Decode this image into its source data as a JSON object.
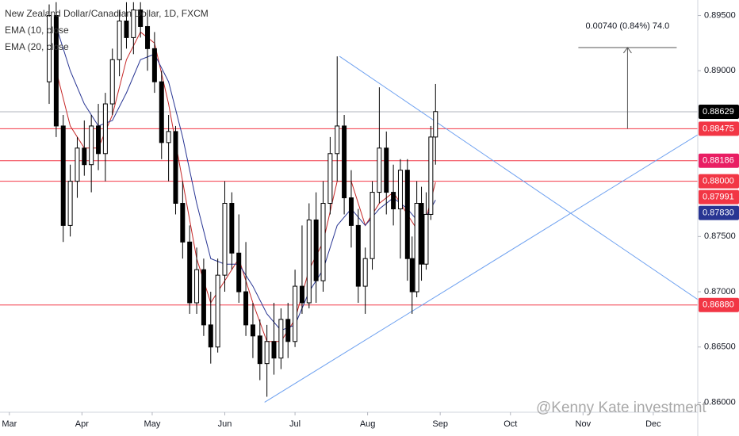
{
  "chart_data": {
    "type": "candlestick",
    "title": "New Zealand Dollar/Canadian Dollar, 1D, FXCM",
    "watermark": "@Kenny Kate investment",
    "xlim": [
      -4,
      294
    ],
    "ylim": [
      0.8591,
      0.8964
    ],
    "xticks": [
      {
        "value": 0,
        "label": "Mar"
      },
      {
        "value": 31,
        "label": "Apr"
      },
      {
        "value": 61,
        "label": "May"
      },
      {
        "value": 92,
        "label": "Jun"
      },
      {
        "value": 122,
        "label": "Jul"
      },
      {
        "value": 153,
        "label": "Aug"
      },
      {
        "value": 184,
        "label": "Sep"
      },
      {
        "value": 214,
        "label": "Oct"
      },
      {
        "value": 245,
        "label": "Nov"
      },
      {
        "value": 275,
        "label": "Dec"
      }
    ],
    "yticks": [
      {
        "value": 0.895,
        "label": "0.89500"
      },
      {
        "value": 0.89,
        "label": "0.89000"
      },
      {
        "value": 0.875,
        "label": "0.87500"
      },
      {
        "value": 0.87,
        "label": "0.87000"
      },
      {
        "value": 0.865,
        "label": "0.86500"
      },
      {
        "value": 0.86,
        "label": "0.86000"
      }
    ],
    "up_color": "#ffffff",
    "down_color": "#000000",
    "wick_color": "#000000",
    "x": [
      17,
      20,
      23,
      26,
      29,
      32,
      35,
      38,
      41,
      44,
      47,
      50,
      53,
      56,
      59,
      62,
      65,
      68,
      71,
      74,
      77,
      80,
      83,
      86,
      89,
      92,
      95,
      98,
      101,
      104,
      107,
      110,
      113,
      116,
      119,
      122,
      125,
      128,
      131,
      134,
      137,
      140,
      143,
      146,
      149,
      152,
      155,
      158,
      161,
      164,
      167,
      170,
      172,
      174,
      176,
      178,
      180,
      182
    ],
    "open": [
      0.889,
      0.895,
      0.885,
      0.876,
      0.88,
      0.883,
      0.8815,
      0.885,
      0.8825,
      0.887,
      0.891,
      0.8945,
      0.893,
      0.8955,
      0.894,
      0.892,
      0.889,
      0.8835,
      0.8845,
      0.878,
      0.8745,
      0.869,
      0.872,
      0.867,
      0.865,
      0.8715,
      0.878,
      0.8735,
      0.87,
      0.867,
      0.866,
      0.8635,
      0.8655,
      0.864,
      0.8675,
      0.8655,
      0.8705,
      0.869,
      0.8765,
      0.871,
      0.878,
      0.8825,
      0.885,
      0.8785,
      0.876,
      0.8705,
      0.873,
      0.879,
      0.883,
      0.879,
      0.8775,
      0.881,
      0.873,
      0.87,
      0.878,
      0.8725,
      0.877,
      0.884
    ],
    "high": [
      0.896,
      0.8962,
      0.886,
      0.8815,
      0.884,
      0.8855,
      0.886,
      0.887,
      0.888,
      0.892,
      0.8955,
      0.8962,
      0.8962,
      0.8962,
      0.8955,
      0.8935,
      0.89,
      0.886,
      0.885,
      0.88,
      0.876,
      0.874,
      0.873,
      0.87,
      0.873,
      0.88,
      0.879,
      0.877,
      0.8745,
      0.869,
      0.8675,
      0.867,
      0.869,
      0.8685,
      0.869,
      0.872,
      0.876,
      0.878,
      0.879,
      0.88,
      0.884,
      0.8913,
      0.886,
      0.881,
      0.8775,
      0.874,
      0.88,
      0.8885,
      0.8845,
      0.8815,
      0.882,
      0.882,
      0.875,
      0.88,
      0.8795,
      0.879,
      0.885,
      0.8888
    ],
    "low": [
      0.887,
      0.884,
      0.8745,
      0.875,
      0.8785,
      0.8805,
      0.879,
      0.881,
      0.88,
      0.886,
      0.8895,
      0.892,
      0.8915,
      0.893,
      0.89,
      0.888,
      0.882,
      0.88,
      0.877,
      0.873,
      0.868,
      0.868,
      0.866,
      0.8635,
      0.8645,
      0.87,
      0.872,
      0.869,
      0.866,
      0.864,
      0.862,
      0.8605,
      0.8625,
      0.863,
      0.864,
      0.865,
      0.868,
      0.8685,
      0.869,
      0.87,
      0.877,
      0.88,
      0.877,
      0.874,
      0.869,
      0.868,
      0.872,
      0.878,
      0.877,
      0.876,
      0.873,
      0.871,
      0.868,
      0.8695,
      0.871,
      0.872,
      0.8765,
      0.8815
    ],
    "close": [
      0.895,
      0.885,
      0.876,
      0.88,
      0.883,
      0.8815,
      0.885,
      0.8825,
      0.887,
      0.891,
      0.8945,
      0.893,
      0.8955,
      0.894,
      0.892,
      0.889,
      0.8835,
      0.8845,
      0.878,
      0.8745,
      0.869,
      0.872,
      0.867,
      0.865,
      0.8715,
      0.878,
      0.8735,
      0.87,
      0.867,
      0.866,
      0.8635,
      0.8655,
      0.864,
      0.8675,
      0.8655,
      0.8705,
      0.869,
      0.8765,
      0.871,
      0.878,
      0.8825,
      0.885,
      0.8785,
      0.876,
      0.8705,
      0.873,
      0.879,
      0.883,
      0.879,
      0.8775,
      0.881,
      0.873,
      0.87,
      0.878,
      0.8725,
      0.877,
      0.884,
      0.8863
    ],
    "series": [
      {
        "name": "EMA (10, close",
        "color": "#c62828",
        "x": [
          20,
          26,
          32,
          38,
          44,
          50,
          56,
          62,
          68,
          74,
          80,
          86,
          92,
          98,
          104,
          110,
          116,
          122,
          128,
          134,
          140,
          146,
          152,
          158,
          164,
          170,
          176,
          182
        ],
        "values": [
          0.89,
          0.885,
          0.883,
          0.883,
          0.886,
          0.891,
          0.8935,
          0.8925,
          0.887,
          0.88,
          0.873,
          0.869,
          0.871,
          0.873,
          0.869,
          0.8655,
          0.8655,
          0.8675,
          0.872,
          0.8745,
          0.88,
          0.88,
          0.876,
          0.878,
          0.879,
          0.877,
          0.875,
          0.87991
        ]
      },
      {
        "name": "EMA (20, close",
        "color": "#283593",
        "x": [
          20,
          26,
          32,
          38,
          44,
          50,
          56,
          62,
          68,
          74,
          80,
          86,
          92,
          98,
          104,
          110,
          116,
          122,
          128,
          134,
          140,
          146,
          152,
          158,
          164,
          170,
          176,
          182
        ],
        "values": [
          0.894,
          0.89,
          0.887,
          0.885,
          0.8855,
          0.888,
          0.891,
          0.8915,
          0.889,
          0.884,
          0.878,
          0.873,
          0.8725,
          0.8725,
          0.8705,
          0.868,
          0.8665,
          0.867,
          0.87,
          0.872,
          0.876,
          0.8775,
          0.876,
          0.8775,
          0.8785,
          0.8775,
          0.876,
          0.8783
        ]
      }
    ],
    "levels": [
      {
        "value": 0.88475,
        "label": "0.88475",
        "color": "#f23645"
      },
      {
        "value": 0.88186,
        "label": "0.88186",
        "color": "#e91e63"
      },
      {
        "value": 0.88,
        "label": "0.88000",
        "color": "#f23645"
      },
      {
        "value": 0.8688,
        "label": "0.86880",
        "color": "#f23645"
      }
    ],
    "level_line_color": "#f23645",
    "current_price": {
      "value": 0.88629,
      "label": "0.88629",
      "color": "#000000",
      "line_color": "#b2b5be"
    },
    "price_tags": [
      {
        "value": 0.87991,
        "label": "0.87991",
        "color": "#f23645"
      },
      {
        "value": 0.8783,
        "label": "0.87830",
        "color": "#283593"
      }
    ],
    "trendlines": [
      {
        "x": [
          141,
          294
        ],
        "y": [
          0.8913,
          0.8693
        ],
        "color": "#6ea1f0"
      },
      {
        "x": [
          109,
          294
        ],
        "y": [
          0.86,
          0.8842
        ],
        "color": "#6ea1f0"
      }
    ],
    "measure": {
      "label": "0.00740 (0.84%) 74.0",
      "x": 264,
      "from": 0.88475,
      "to": 0.8921,
      "x_range": [
        243,
        285
      ]
    }
  }
}
